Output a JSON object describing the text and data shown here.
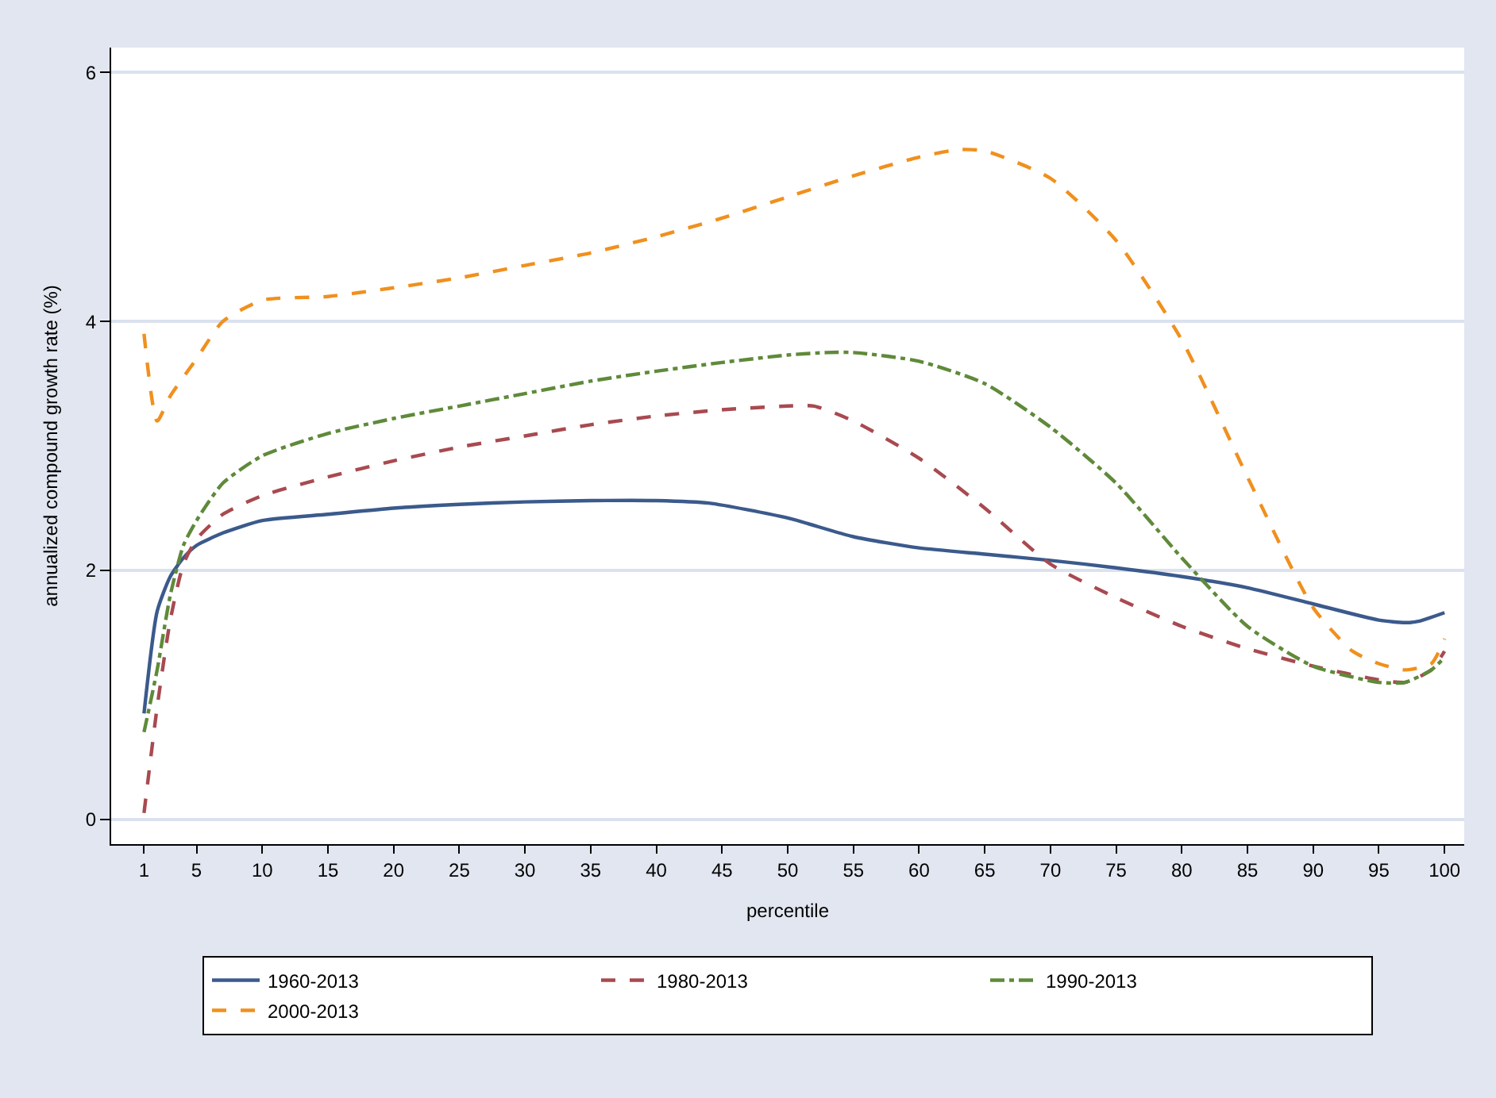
{
  "chart_data": {
    "type": "line",
    "xlabel": "percentile",
    "ylabel": "annualized compound growth rate (%)",
    "xlim": [
      -1.5,
      101.5
    ],
    "xticks": [
      1,
      5,
      10,
      15,
      20,
      25,
      30,
      35,
      40,
      45,
      50,
      55,
      60,
      65,
      70,
      75,
      80,
      85,
      90,
      95,
      100
    ],
    "ylim": [
      -0.2,
      6.2
    ],
    "yticks": [
      0,
      2,
      4,
      6
    ],
    "grid": "y",
    "legend": "bottom",
    "marker": "none",
    "series": [
      {
        "name": "1960-2013",
        "color": "#3b5a8c",
        "line_style": "solid",
        "x": [
          1,
          2,
          3,
          4,
          5,
          7,
          10,
          15,
          20,
          25,
          30,
          35,
          40,
          44,
          50,
          55,
          60,
          65,
          70,
          75,
          80,
          85,
          90,
          95,
          97,
          98,
          100
        ],
        "values": [
          0.85,
          1.67,
          1.95,
          2.1,
          2.2,
          2.3,
          2.4,
          2.45,
          2.5,
          2.53,
          2.55,
          2.56,
          2.56,
          2.54,
          2.42,
          2.27,
          2.18,
          2.13,
          2.08,
          2.02,
          1.95,
          1.86,
          1.73,
          1.6,
          1.58,
          1.59,
          1.66
        ]
      },
      {
        "name": "1980-2013",
        "color": "#a84a50",
        "line_style": "dashed",
        "x": [
          1,
          2,
          3,
          4,
          5,
          7,
          10,
          15,
          20,
          25,
          30,
          35,
          40,
          45,
          50,
          52,
          55,
          60,
          65,
          70,
          75,
          80,
          85,
          90,
          95,
          97,
          99,
          100
        ],
        "values": [
          0.05,
          0.9,
          1.6,
          2.05,
          2.25,
          2.45,
          2.6,
          2.75,
          2.88,
          2.99,
          3.08,
          3.17,
          3.24,
          3.29,
          3.32,
          3.32,
          3.2,
          2.9,
          2.5,
          2.05,
          1.78,
          1.55,
          1.37,
          1.23,
          1.12,
          1.1,
          1.2,
          1.35
        ]
      },
      {
        "name": "1990-2013",
        "color": "#5f8a3a",
        "line_style": "dotted",
        "x": [
          1,
          2,
          3,
          4,
          5,
          7,
          10,
          15,
          20,
          25,
          30,
          35,
          40,
          45,
          50,
          53,
          55,
          60,
          65,
          70,
          75,
          80,
          85,
          90,
          95,
          97,
          99,
          100
        ],
        "values": [
          0.7,
          1.2,
          1.8,
          2.2,
          2.4,
          2.7,
          2.92,
          3.1,
          3.22,
          3.32,
          3.42,
          3.52,
          3.6,
          3.67,
          3.73,
          3.75,
          3.75,
          3.68,
          3.5,
          3.15,
          2.7,
          2.1,
          1.55,
          1.23,
          1.1,
          1.1,
          1.2,
          1.3
        ]
      },
      {
        "name": "2000-2013",
        "color": "#f0901e",
        "line_style": "dashed",
        "x": [
          1,
          2,
          3,
          5,
          7,
          10,
          15,
          20,
          25,
          30,
          35,
          40,
          45,
          50,
          55,
          60,
          63,
          65,
          70,
          75,
          80,
          85,
          90,
          93,
          95,
          97,
          99,
          100
        ],
        "values": [
          3.9,
          3.2,
          3.4,
          3.7,
          4.0,
          4.17,
          4.2,
          4.27,
          4.35,
          4.45,
          4.55,
          4.68,
          4.83,
          5.0,
          5.17,
          5.32,
          5.38,
          5.37,
          5.15,
          4.65,
          3.85,
          2.75,
          1.7,
          1.35,
          1.25,
          1.2,
          1.25,
          1.45
        ]
      }
    ]
  }
}
